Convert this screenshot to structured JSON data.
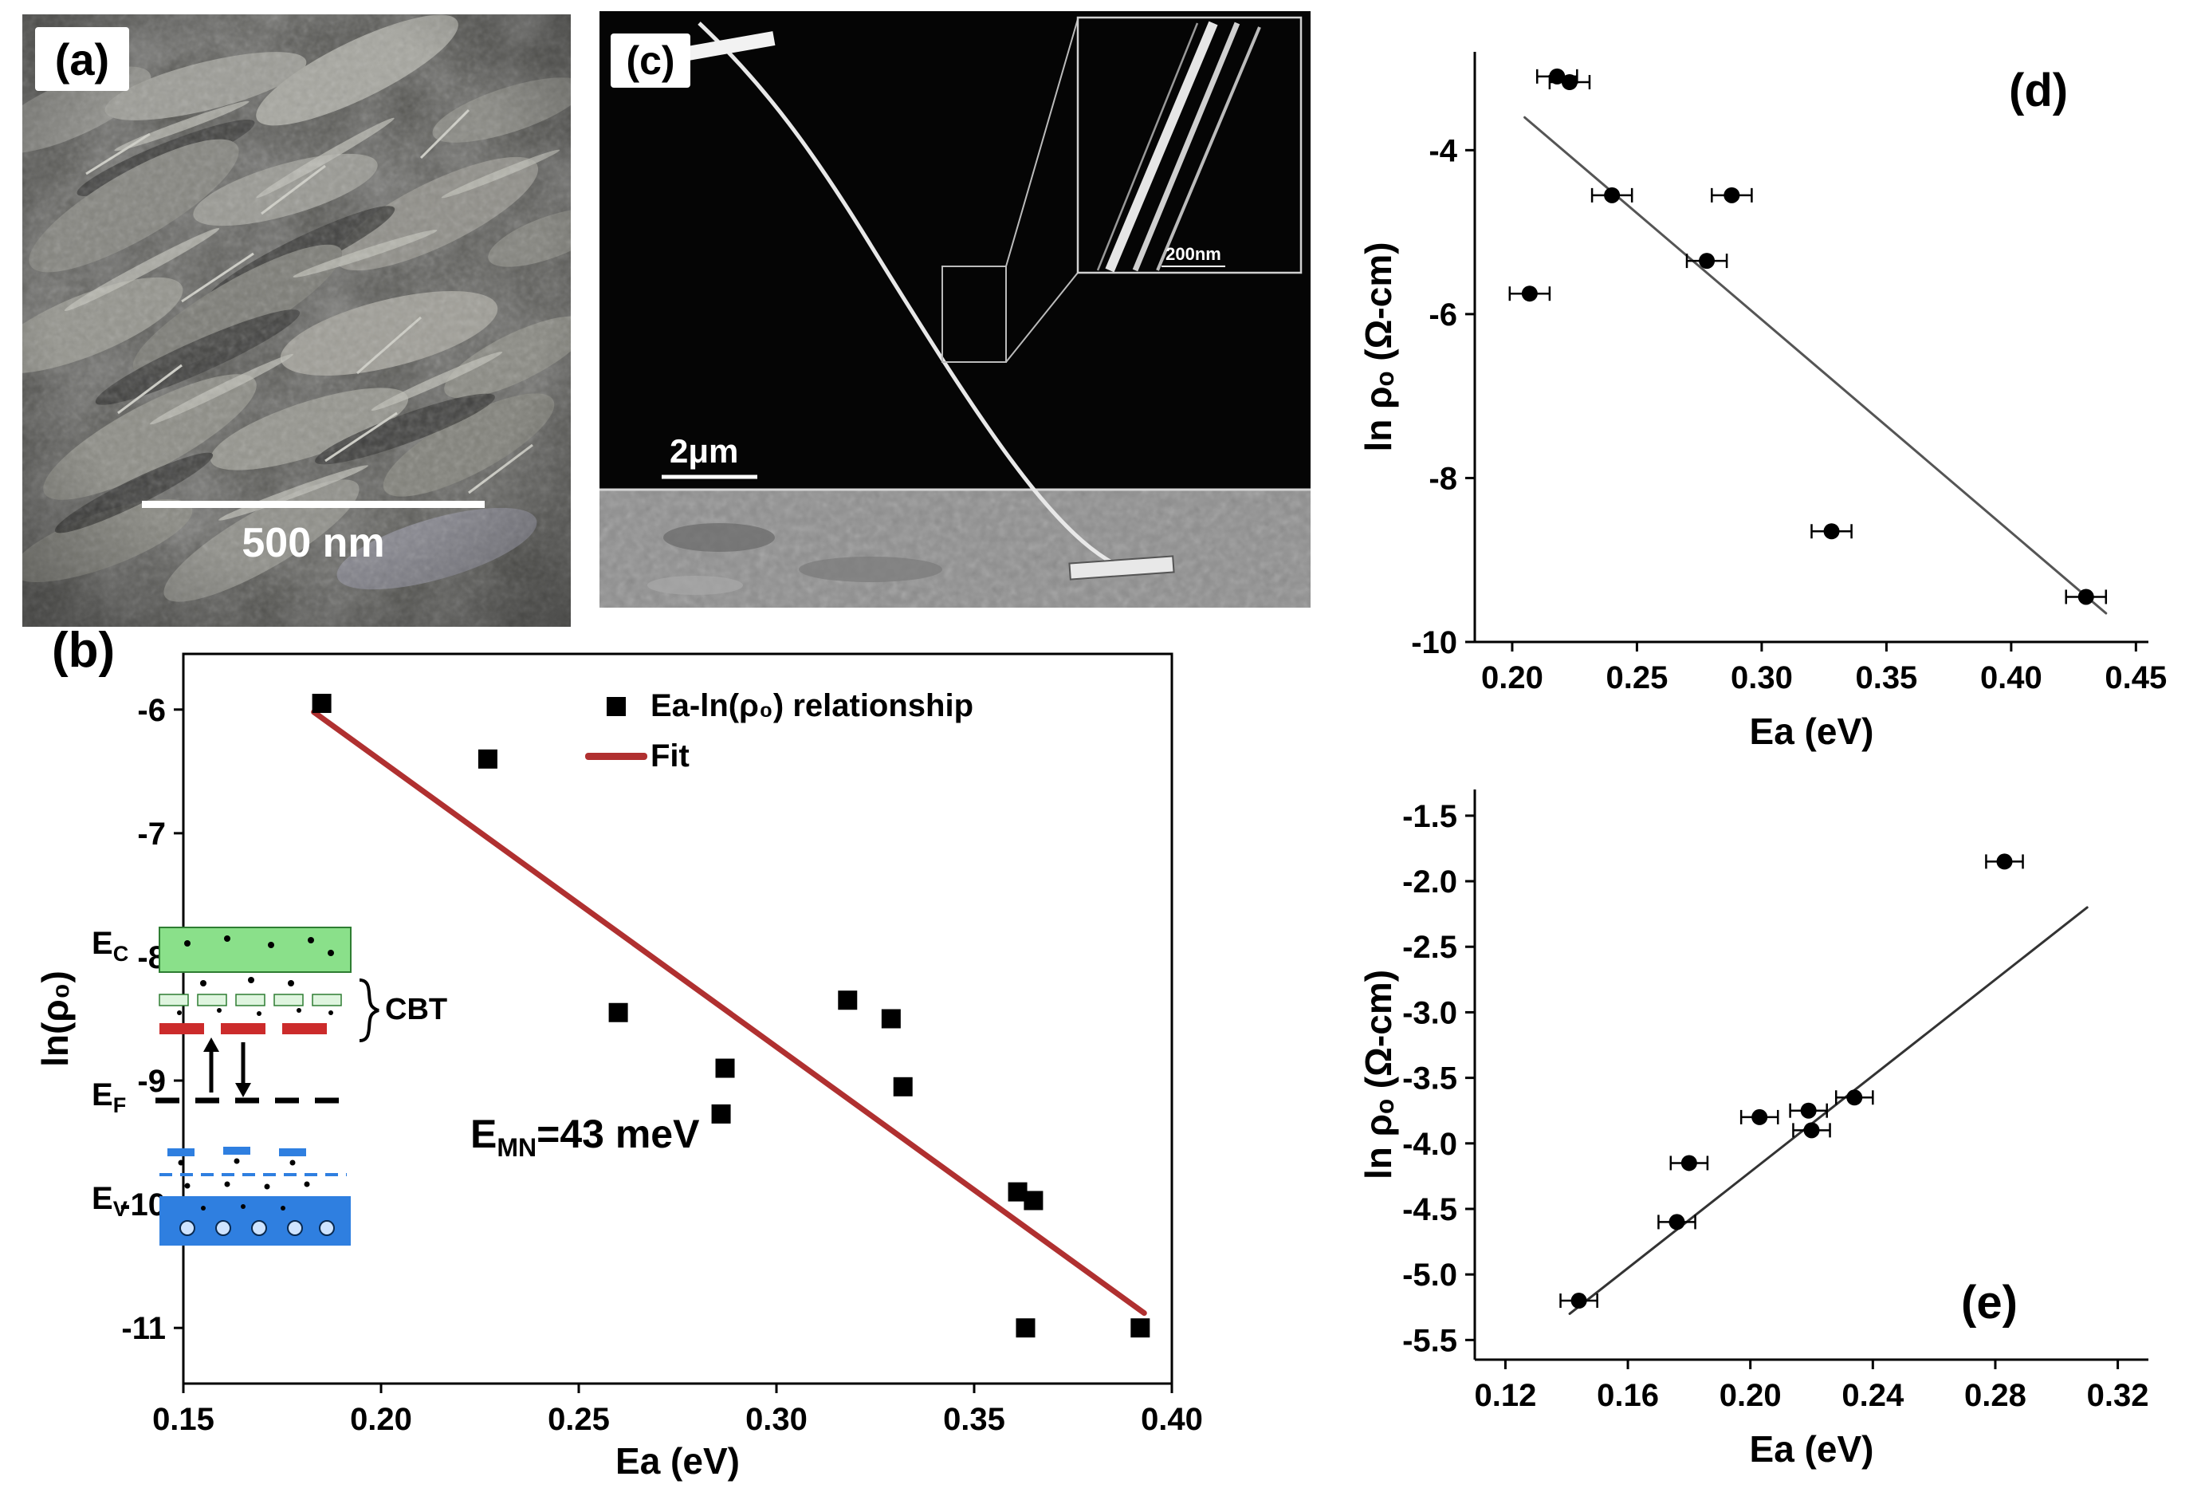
{
  "figure": {
    "background": "#ffffff",
    "panel_a": {
      "label": "(a)",
      "scale_bar_text": "500 nm"
    },
    "panel_b": {
      "label": "(b)",
      "annotation": {
        "pre": "E",
        "sub": "MN",
        "post": "=43 meV"
      },
      "inset": {
        "ec_pre": "E",
        "ec_sub": "C",
        "ef_pre": "E",
        "ef_sub": "F",
        "ev_pre": "E",
        "ev_sub": "V",
        "cbt_label": "CBT",
        "conduction_color": "#8ae08a",
        "trap_color": "#dff5df",
        "defect_color": "#cc2b2b",
        "valence_color": "#2f7fe0"
      }
    },
    "panel_c": {
      "label": "(c)",
      "scale_bar_text": "2μm",
      "inset_scale_text": "200nm"
    },
    "panel_d": {
      "label": "(d)"
    },
    "panel_e": {
      "label": "(e)"
    }
  },
  "chart_data": [
    {
      "id": "b",
      "type": "scatter",
      "title": "",
      "xlabel": "Ea (eV)",
      "ylabel": "ln(ρ₀)",
      "xlim": [
        0.15,
        0.4
      ],
      "ylim": [
        -11.45,
        -5.55
      ],
      "xtick_labels": [
        "0.15",
        "0.20",
        "0.25",
        "0.30",
        "0.35",
        "0.40"
      ],
      "ytick_labels": [
        "-6",
        "-7",
        "-8",
        "-9",
        "-10",
        "-11"
      ],
      "box": true,
      "grid": false,
      "marker": "square",
      "marker_color": "#000000",
      "series_label": "Ea-ln(ρ₀) relationship",
      "fit_label": "Fit",
      "annotation": "EMN=43 meV",
      "points": [
        [
          0.185,
          -5.95
        ],
        [
          0.227,
          -6.4
        ],
        [
          0.26,
          -8.45
        ],
        [
          0.287,
          -8.9
        ],
        [
          0.286,
          -9.27
        ],
        [
          0.318,
          -8.35
        ],
        [
          0.329,
          -8.5
        ],
        [
          0.332,
          -9.05
        ],
        [
          0.361,
          -9.9
        ],
        [
          0.365,
          -9.97
        ],
        [
          0.363,
          -11.0
        ],
        [
          0.392,
          -11.0
        ]
      ],
      "fit_line": {
        "x1": 0.183,
        "y1": -6.02,
        "x2": 0.393,
        "y2": -10.88,
        "color": "#b03030",
        "width": 7
      }
    },
    {
      "id": "d",
      "type": "scatter",
      "title": "",
      "xlabel": "Ea (eV)",
      "ylabel": "ln ρₒ (Ω-cm)",
      "xlim": [
        0.185,
        0.455
      ],
      "ylim": [
        -10,
        -2.8
      ],
      "xtick_labels": [
        "0.20",
        "0.25",
        "0.30",
        "0.35",
        "0.40",
        "0.45"
      ],
      "ytick_labels": [
        "-4",
        "-6",
        "-8",
        "-10"
      ],
      "box": false,
      "grid": false,
      "marker": "circle",
      "marker_color": "#000000",
      "xerr": 0.008,
      "points": [
        [
          0.218,
          -3.1
        ],
        [
          0.223,
          -3.17
        ],
        [
          0.24,
          -4.55
        ],
        [
          0.288,
          -4.55
        ],
        [
          0.278,
          -5.35
        ],
        [
          0.207,
          -5.75
        ],
        [
          0.328,
          -8.65
        ],
        [
          0.43,
          -9.45
        ]
      ],
      "fit_line": {
        "x1": 0.205,
        "y1": -3.6,
        "x2": 0.438,
        "y2": -9.65,
        "color": "#555555",
        "width": 3
      }
    },
    {
      "id": "e",
      "type": "scatter",
      "title": "",
      "xlabel": "Ea (eV)",
      "ylabel": "ln ρₒ (Ω-cm)",
      "xlim": [
        0.11,
        0.33
      ],
      "ylim": [
        -5.65,
        -1.3
      ],
      "xtick_labels": [
        "0.12",
        "0.16",
        "0.20",
        "0.24",
        "0.28",
        "0.32"
      ],
      "ytick_labels": [
        "-1.5",
        "-2.0",
        "-2.5",
        "-3.0",
        "-3.5",
        "-4.0",
        "-4.5",
        "-5.0",
        "-5.5"
      ],
      "box": false,
      "grid": false,
      "marker": "circle",
      "marker_color": "#000000",
      "xerr": 0.006,
      "points": [
        [
          0.283,
          -1.85
        ],
        [
          0.234,
          -3.65
        ],
        [
          0.203,
          -3.8
        ],
        [
          0.219,
          -3.75
        ],
        [
          0.22,
          -3.9
        ],
        [
          0.18,
          -4.15
        ],
        [
          0.176,
          -4.6
        ],
        [
          0.144,
          -5.2
        ]
      ],
      "fit_line": {
        "x1": 0.141,
        "y1": -5.3,
        "x2": 0.31,
        "y2": -2.2,
        "color": "#333333",
        "width": 3
      }
    }
  ]
}
